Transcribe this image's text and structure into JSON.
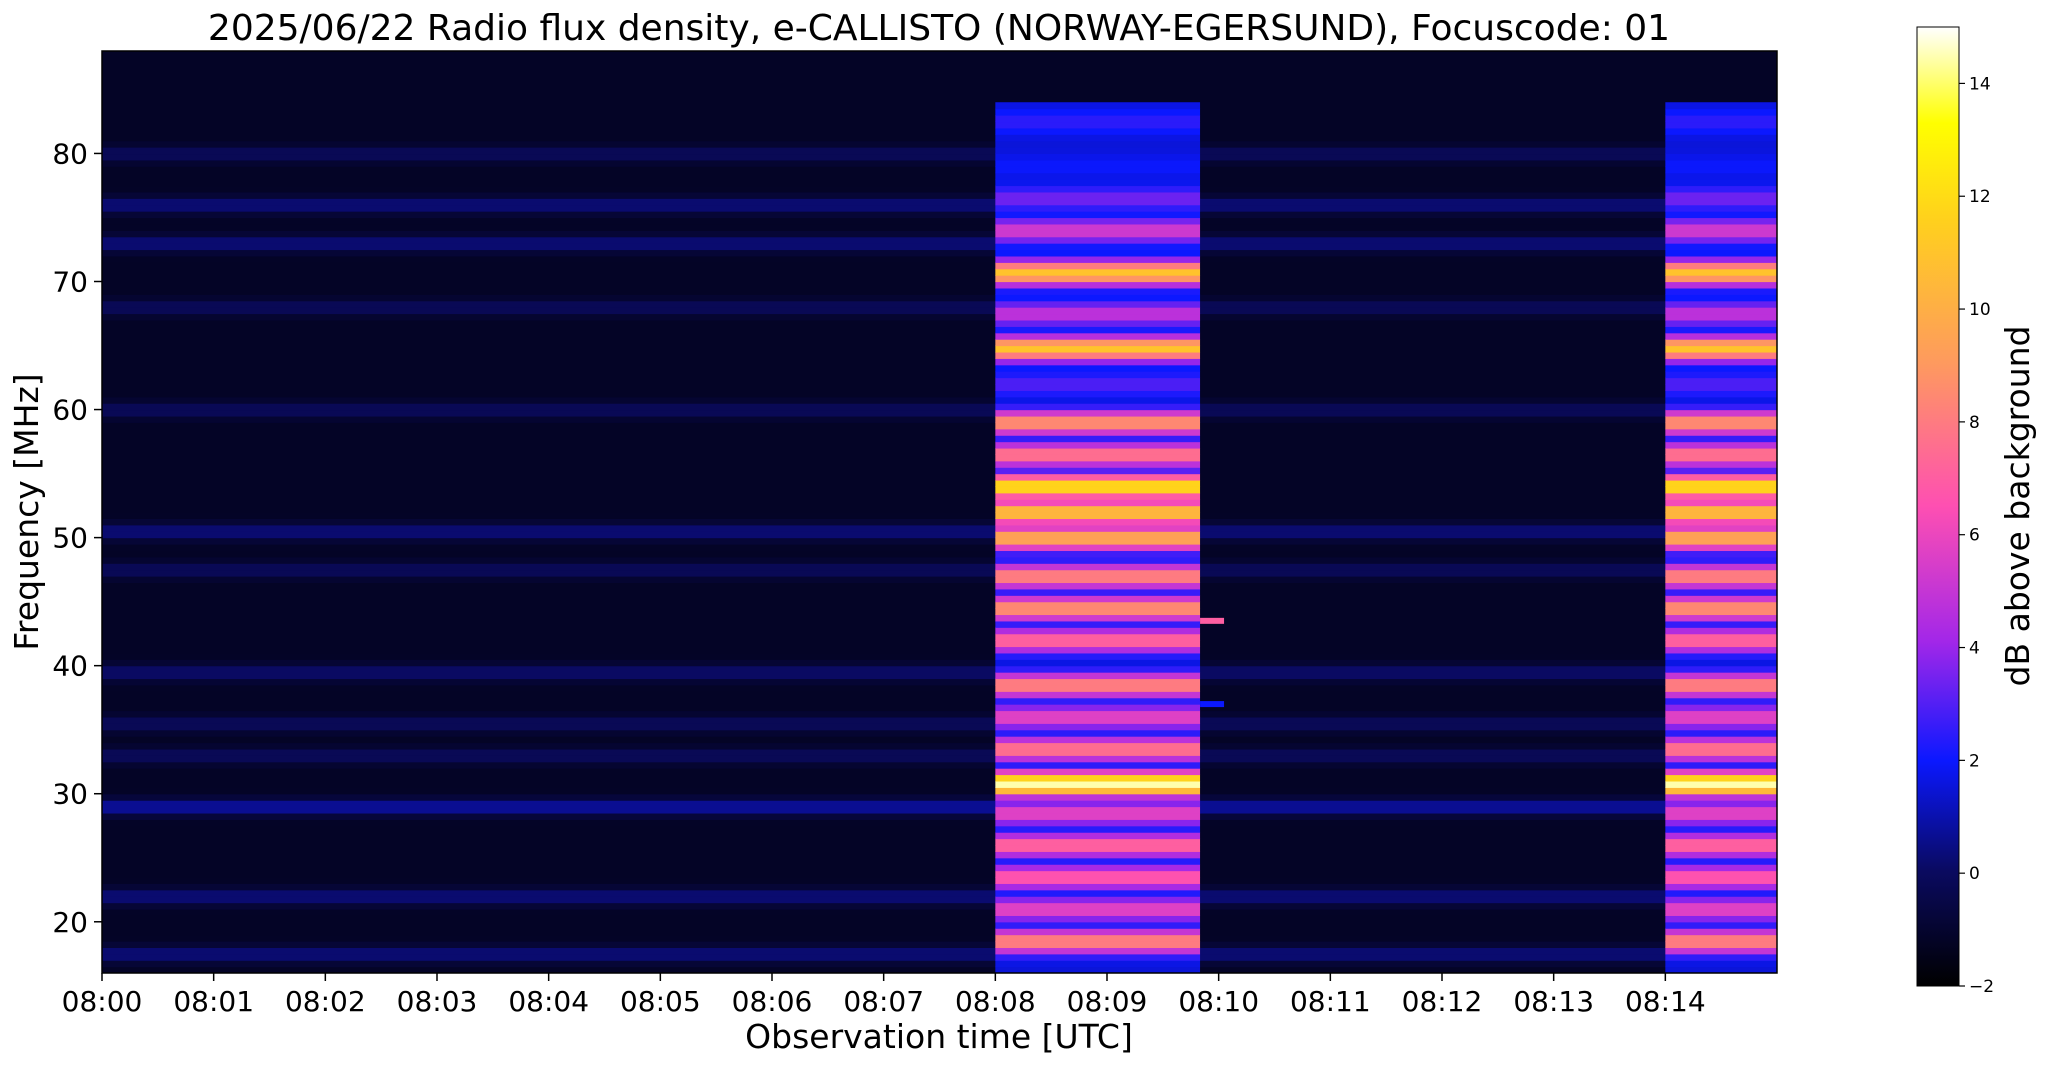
{
  "chart_data": {
    "type": "heatmap",
    "title": "2025/06/22  Radio flux density, e-CALLISTO (NORWAY-EGERSUND), Focuscode: 01",
    "xlabel": "Observation time [UTC]",
    "ylabel": "Frequency [MHz]",
    "xlim": [
      "08:00",
      "08:15"
    ],
    "ylim": [
      16,
      88
    ],
    "x_ticks": [
      "08:00",
      "08:01",
      "08:02",
      "08:03",
      "08:04",
      "08:05",
      "08:06",
      "08:07",
      "08:08",
      "08:09",
      "08:10",
      "08:11",
      "08:12",
      "08:13",
      "08:14"
    ],
    "y_ticks": [
      20,
      30,
      40,
      50,
      60,
      70,
      80
    ],
    "colorbar": {
      "label": "dB above background",
      "range": [
        -2,
        15
      ],
      "ticks": [
        -2,
        0,
        2,
        4,
        6,
        8,
        10,
        12,
        14
      ],
      "colormap": [
        "#000000",
        "#0a0a60",
        "#0b18ff",
        "#a327e8",
        "#fe4fb2",
        "#fe9a5e",
        "#ffd11c",
        "#ffff00",
        "#ffffff"
      ]
    },
    "bursts": [
      {
        "start": "08:08",
        "end": "08:09:50",
        "level": "high"
      },
      {
        "start": "08:14",
        "end": "08:15",
        "level": "high"
      }
    ],
    "band_profile_burst": [
      {
        "freq": 18.5,
        "db": 8.5
      },
      {
        "freq": 21,
        "db": 6
      },
      {
        "freq": 23.5,
        "db": 7
      },
      {
        "freq": 26,
        "db": 7.5
      },
      {
        "freq": 28.5,
        "db": 6
      },
      {
        "freq": 30.8,
        "db": 14.5
      },
      {
        "freq": 33.5,
        "db": 8
      },
      {
        "freq": 36,
        "db": 6
      },
      {
        "freq": 38.5,
        "db": 8.5
      },
      {
        "freq": 42,
        "db": 7.5
      },
      {
        "freq": 44.5,
        "db": 9
      },
      {
        "freq": 47,
        "db": 8.5
      },
      {
        "freq": 50,
        "db": 10
      },
      {
        "freq": 52,
        "db": 11
      },
      {
        "freq": 54,
        "db": 12.5
      },
      {
        "freq": 56.5,
        "db": 8
      },
      {
        "freq": 59,
        "db": 9
      },
      {
        "freq": 62,
        "db": 3
      },
      {
        "freq": 64.8,
        "db": 11
      },
      {
        "freq": 67.5,
        "db": 5
      },
      {
        "freq": 70.7,
        "db": 11
      },
      {
        "freq": 74,
        "db": 5.5
      },
      {
        "freq": 76.5,
        "db": 3.5
      },
      {
        "freq": 79,
        "db": 2
      },
      {
        "freq": 82.5,
        "db": 2.5
      }
    ],
    "band_profile_quiet": [
      {
        "freq": 17.5,
        "db": 0.5
      },
      {
        "freq": 22,
        "db": 0.5
      },
      {
        "freq": 29,
        "db": 1
      },
      {
        "freq": 33,
        "db": 0
      },
      {
        "freq": 35.5,
        "db": 0
      },
      {
        "freq": 39.5,
        "db": 0.3
      },
      {
        "freq": 47.5,
        "db": 0
      },
      {
        "freq": 50.5,
        "db": 0.5
      },
      {
        "freq": 60,
        "db": 0
      },
      {
        "freq": 64.8,
        "db": -2
      },
      {
        "freq": 68,
        "db": 0
      },
      {
        "freq": 70.7,
        "db": -2
      },
      {
        "freq": 73,
        "db": 0.5
      },
      {
        "freq": 76,
        "db": 0.5
      },
      {
        "freq": 80,
        "db": 0
      }
    ],
    "short_lines": [
      {
        "time": "08:09:50",
        "freq": 43.5,
        "db": 7
      },
      {
        "time": "08:09:50",
        "freq": 37,
        "db": 2
      }
    ]
  }
}
